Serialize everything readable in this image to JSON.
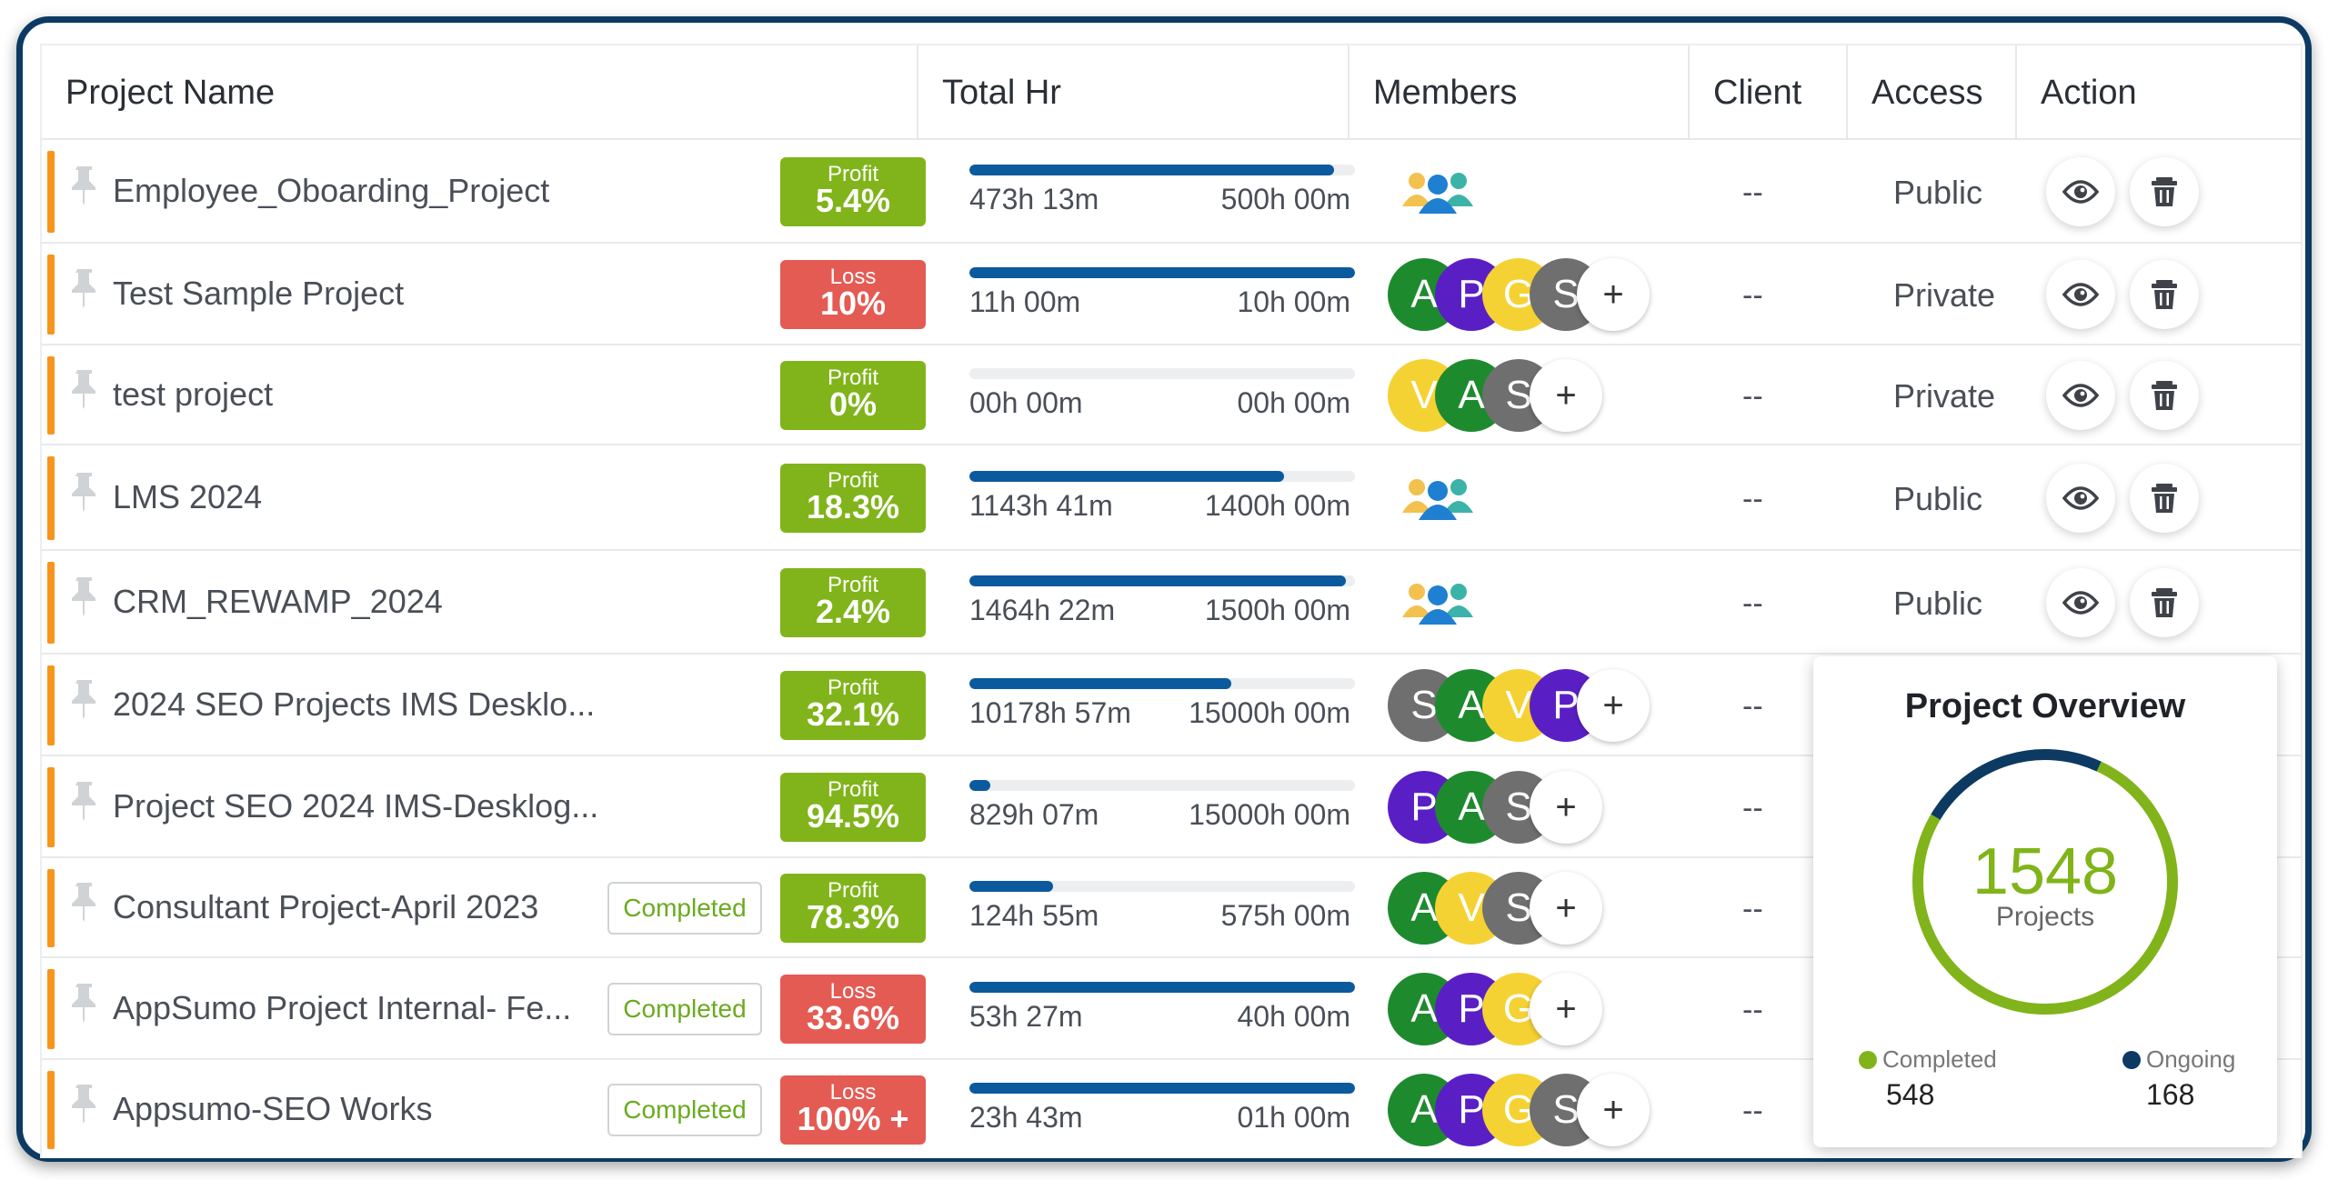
{
  "columns": {
    "project_name": "Project Name",
    "total_hr": "Total Hr",
    "members": "Members",
    "client": "Client",
    "access": "Access",
    "action": "Action"
  },
  "colors": {
    "profit": "#80b41a",
    "loss": "#e45b54",
    "progress": "#0b5a9e",
    "completed_text": "#6aab1f",
    "ongoing": "#0d3a62",
    "stripe": "#f7951d"
  },
  "rows": [
    {
      "name": "Employee_Oboarding_Project",
      "status": "",
      "pl_type": "Profit",
      "pl_value": "5.4%",
      "progress": 0.946,
      "used": "473h 13m",
      "total": "500h 00m",
      "members": [],
      "group_icon": "users-group-icon",
      "client": "--",
      "access": "Public"
    },
    {
      "name": "Test Sample Project",
      "status": "",
      "pl_type": "Loss",
      "pl_value": "10%",
      "progress": 1.0,
      "used": "11h 00m",
      "total": "10h 00m",
      "members": [
        "A",
        "P",
        "G",
        "S"
      ],
      "client": "--",
      "access": "Private"
    },
    {
      "name": "test project",
      "status": "",
      "pl_type": "Profit",
      "pl_value": "0%",
      "progress": 0.0,
      "used": "00h 00m",
      "total": "00h 00m",
      "members": [
        "V",
        "A",
        "S"
      ],
      "client": "--",
      "access": "Private"
    },
    {
      "name": "LMS 2024",
      "status": "",
      "pl_type": "Profit",
      "pl_value": "18.3%",
      "progress": 0.817,
      "used": "1143h 41m",
      "total": "1400h 00m",
      "members": [],
      "group_icon": "users-group-icon",
      "client": "--",
      "access": "Public"
    },
    {
      "name": "CRM_REWAMP_2024",
      "status": "",
      "pl_type": "Profit",
      "pl_value": "2.4%",
      "progress": 0.976,
      "used": "1464h 22m",
      "total": "1500h 00m",
      "members": [],
      "group_icon": "users-group-icon",
      "client": "--",
      "access": "Public"
    },
    {
      "name": "2024 SEO Projects IMS Desklo...",
      "status": "",
      "pl_type": "Profit",
      "pl_value": "32.1%",
      "progress": 0.679,
      "used": "10178h 57m",
      "total": "15000h 00m",
      "members": [
        "S",
        "A",
        "V",
        "P"
      ],
      "client": "--",
      "access": ""
    },
    {
      "name": "Project SEO 2024 IMS-Desklog...",
      "status": "",
      "pl_type": "Profit",
      "pl_value": "94.5%",
      "progress": 0.055,
      "used": "829h 07m",
      "total": "15000h 00m",
      "members": [
        "P",
        "A",
        "S"
      ],
      "client": "--",
      "access": ""
    },
    {
      "name": "Consultant Project-April 2023",
      "status": "Completed",
      "pl_type": "Profit",
      "pl_value": "78.3%",
      "progress": 0.217,
      "used": "124h 55m",
      "total": "575h 00m",
      "members": [
        "A",
        "V",
        "S"
      ],
      "client": "--",
      "access": ""
    },
    {
      "name": "AppSumo Project Internal- Fe...",
      "status": "Completed",
      "pl_type": "Loss",
      "pl_value": "33.6%",
      "progress": 1.0,
      "used": "53h 27m",
      "total": "40h 00m",
      "members": [
        "A",
        "P",
        "G"
      ],
      "client": "--",
      "access": ""
    },
    {
      "name": "Appsumo-SEO Works",
      "status": "Completed",
      "pl_type": "Loss",
      "pl_value": "100% +",
      "progress": 1.0,
      "used": "23h 43m",
      "total": "01h 00m",
      "members": [
        "A",
        "P",
        "G",
        "S"
      ],
      "client": "--",
      "access": ""
    }
  ],
  "member_colors": {
    "A": "#1e8a2e",
    "P": "#5a1fc4",
    "G": "#f5d233",
    "S": "#6f6f6f",
    "V": "#f5d233"
  },
  "add_member_label": "+",
  "overview": {
    "title": "Project Overview",
    "total": "1548",
    "total_label": "Projects",
    "completed_label": "Completed",
    "completed_value": "548",
    "ongoing_label": "Ongoing",
    "ongoing_value": "168"
  }
}
